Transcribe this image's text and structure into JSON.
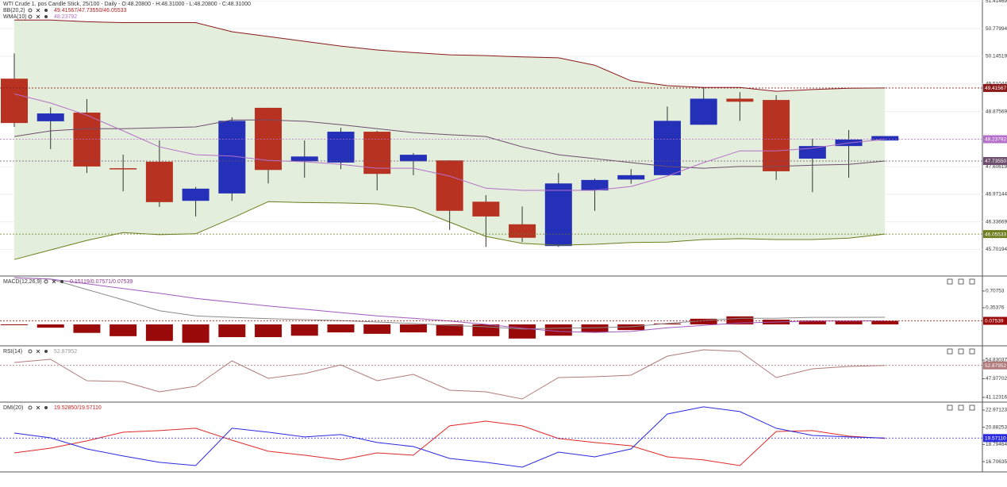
{
  "chart_data": [
    {
      "type": "candlestick",
      "title": "WTI Crude 1. pos  Candle Stick, 25/100 - Daily - O:48.20800 - H:48.31000 - L:48.20800 - C:48.31000",
      "open": [
        49.63,
        48.65,
        48.85,
        47.57,
        47.72,
        46.82,
        46.99,
        48.96,
        47.73,
        47.7,
        48.41,
        47.73,
        47.75,
        46.8,
        46.28,
        45.78,
        47.06,
        47.31,
        47.41,
        48.57,
        49.17,
        49.14,
        47.79,
        48.08,
        48.208
      ],
      "high": [
        50.21,
        48.97,
        49.16,
        47.88,
        48.21,
        47.14,
        48.74,
        48.96,
        48.21,
        48.5,
        48.43,
        47.92,
        47.75,
        46.95,
        46.69,
        47.46,
        47.33,
        47.55,
        48.99,
        49.43,
        49.32,
        49.25,
        48.25,
        48.45,
        48.31
      ],
      "low": [
        48.52,
        48.01,
        47.46,
        47.04,
        46.68,
        46.46,
        46.82,
        47.22,
        47.35,
        47.55,
        47.06,
        47.41,
        46.15,
        45.76,
        45.87,
        45.76,
        46.59,
        47.21,
        47.41,
        48.57,
        48.66,
        47.3,
        47.02,
        47.35,
        48.208
      ],
      "close": [
        48.61,
        48.83,
        47.61,
        47.55,
        46.79,
        47.1,
        48.66,
        47.53,
        47.84,
        48.41,
        47.44,
        47.88,
        46.59,
        46.46,
        45.97,
        47.22,
        47.3,
        47.41,
        48.66,
        49.17,
        49.1,
        47.5,
        48.08,
        48.23,
        48.31
      ],
      "up_color": "#2430b8",
      "down_color": "#b83222",
      "indicators": [
        {
          "name": "BB(20,2)",
          "legend_values": "49.41567/47.73550/46.05533",
          "legend_color": "#b02020",
          "fill": "#e3efdc",
          "series": [
            {
              "color": "#8b1a1a",
              "values": [
                50.98,
                50.98,
                50.94,
                50.92,
                50.92,
                50.92,
                50.71,
                50.6,
                50.49,
                50.38,
                50.29,
                50.23,
                50.18,
                50.16,
                50.13,
                50.11,
                49.94,
                49.58,
                49.47,
                49.43,
                49.43,
                49.34,
                49.38,
                49.41,
                49.41567
              ],
              "last_label": "49.41567"
            },
            {
              "color": "#6d4d6d",
              "values": [
                48.3,
                48.43,
                48.48,
                48.48,
                48.5,
                48.52,
                48.68,
                48.68,
                48.65,
                48.57,
                48.48,
                48.39,
                48.34,
                48.3,
                48.06,
                47.88,
                47.79,
                47.7,
                47.61,
                47.57,
                47.61,
                47.61,
                47.64,
                47.66,
                47.7355
              ],
              "last_label": "47.73550"
            },
            {
              "color": "#6e7d1e",
              "values": [
                45.47,
                45.69,
                45.91,
                46.09,
                46.04,
                46.06,
                46.42,
                46.8,
                46.78,
                46.77,
                46.75,
                46.66,
                46.33,
                46.0,
                45.84,
                45.8,
                45.82,
                45.86,
                45.87,
                45.93,
                45.95,
                45.93,
                45.93,
                45.96,
                46.05533
              ],
              "last_label": "46.05533"
            }
          ]
        },
        {
          "name": "WMA(10)",
          "legend_values": "48.23792",
          "legend_color": "#b46fc8",
          "series": [
            {
              "color": "#b46fc8",
              "values": [
                49.28,
                49.07,
                48.79,
                48.43,
                48.06,
                47.88,
                47.85,
                47.75,
                47.72,
                47.66,
                47.57,
                47.57,
                47.39,
                47.11,
                47.06,
                47.06,
                47.06,
                47.15,
                47.39,
                47.7,
                47.97,
                47.97,
                48.03,
                48.15,
                48.23792
              ],
              "last_label": "48.23792"
            }
          ]
        }
      ],
      "ylim": [
        45.09,
        51.44
      ],
      "yticks": [
        51.41469,
        50.77994,
        50.14519,
        49.51044,
        48.87569,
        48.24094,
        47.60619,
        46.97144,
        46.33669,
        45.70194
      ],
      "grid": true
    },
    {
      "type": "macd",
      "name": "MACD(12,26,9)",
      "legend_values": "0.15119/0.07571/0.07539",
      "legend_color": "#8a3a8a",
      "histogram": {
        "color": "#9b0a0a",
        "values": [
          -0.01,
          -0.07,
          -0.18,
          -0.25,
          -0.35,
          -0.39,
          -0.27,
          -0.27,
          -0.24,
          -0.17,
          -0.2,
          -0.17,
          -0.24,
          -0.25,
          -0.3,
          -0.24,
          -0.17,
          -0.12,
          0.02,
          0.12,
          0.17,
          0.1,
          0.08,
          0.08,
          0.07539
        ],
        "last_label": "0.07539"
      },
      "series": [
        {
          "color": "#8a8a8a",
          "values": [
            0.99,
            0.96,
            0.74,
            0.52,
            0.29,
            0.18,
            0.15,
            0.12,
            0.1,
            0.08,
            0.05,
            0.02,
            -0.02,
            -0.05,
            -0.1,
            -0.08,
            -0.07,
            -0.05,
            0.02,
            0.08,
            0.13,
            0.13,
            0.15,
            0.15,
            0.15119
          ]
        },
        {
          "color": "#a05ac0",
          "values": [
            0.99,
            0.96,
            0.86,
            0.76,
            0.66,
            0.55,
            0.47,
            0.39,
            0.32,
            0.25,
            0.18,
            0.13,
            0.07,
            0.0,
            -0.08,
            -0.15,
            -0.17,
            -0.15,
            -0.07,
            -0.02,
            0.03,
            0.05,
            0.07,
            0.07,
            0.07571
          ]
        }
      ],
      "ylim": [
        -0.454,
        1.025
      ],
      "yticks": [
        0.70753,
        0.35376
      ]
    },
    {
      "type": "line",
      "name": "RSI(14)",
      "legend_values": "52.87952",
      "legend_color": "#999999",
      "series": [
        {
          "color": "#b07a7a",
          "values": [
            53.95,
            55.12,
            47.25,
            46.95,
            43.16,
            45.2,
            54.54,
            48.12,
            49.87,
            53.08,
            47.25,
            49.58,
            43.75,
            43.16,
            40.54,
            48.41,
            48.7,
            49.29,
            56.29,
            58.62,
            58.04,
            48.41,
            51.62,
            52.5,
            52.87952
          ],
          "last_label": "52.87952"
        }
      ],
      "ylim": [
        39.37,
        60.08
      ],
      "yticks": [
        54.83037,
        47.97702,
        41.12316
      ]
    },
    {
      "type": "line",
      "name": "DMI(20)",
      "legend_values": "19.52850/19.57110",
      "legend_color": "#d02020",
      "series": [
        {
          "color": "#e02828",
          "values": [
            17.77,
            18.35,
            19.22,
            20.28,
            20.47,
            20.76,
            19.31,
            17.97,
            17.49,
            16.91,
            17.77,
            17.49,
            21.05,
            21.62,
            21.05,
            19.51,
            19.03,
            18.64,
            17.29,
            16.91,
            16.23,
            20.37,
            20.47,
            19.8,
            19.5285
          ]
        },
        {
          "color": "#2a2ae0",
          "values": [
            20.18,
            19.6,
            18.25,
            17.39,
            16.62,
            16.23,
            20.76,
            20.28,
            19.7,
            19.99,
            19.03,
            18.54,
            17.1,
            16.62,
            16.04,
            17.87,
            17.29,
            18.25,
            22.49,
            23.36,
            22.78,
            20.76,
            19.89,
            19.7,
            19.5711
          ],
          "last_label": "19.57110"
        }
      ],
      "ylim": [
        15.46,
        23.93
      ],
      "yticks": [
        22.97123,
        20.88253,
        18.79464,
        16.70635
      ]
    }
  ]
}
